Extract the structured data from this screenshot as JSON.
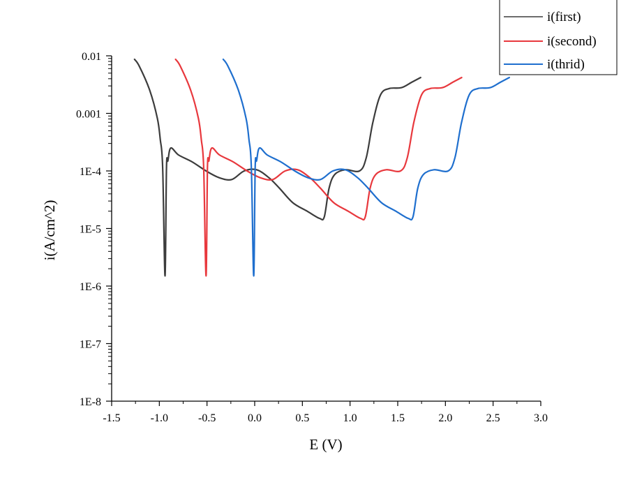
{
  "chart_data": {
    "type": "line",
    "title": "",
    "xlabel": "E (V)",
    "ylabel": "i(A/cm^2)",
    "xlim": [
      -1.5,
      3.0
    ],
    "ylim": [
      1e-08,
      0.01
    ],
    "yscale": "log",
    "grid": false,
    "legend_position": "top-right",
    "x_ticks": [
      "-1.5",
      "-1.0",
      "-0.5",
      "0.0",
      "0.5",
      "1.0",
      "1.5",
      "2.0",
      "2.5",
      "3.0"
    ],
    "x_tick_values": [
      -1.5,
      -1.0,
      -0.5,
      0.0,
      0.5,
      1.0,
      1.5,
      2.0,
      2.5,
      3.0
    ],
    "y_ticks": [
      "0.01",
      "0.001",
      "1E-4",
      "1E-5",
      "1E-6",
      "1E-7",
      "1E-8"
    ],
    "y_tick_values": [
      0.01,
      0.001,
      0.0001,
      1e-05,
      1e-06,
      1e-07,
      1e-08
    ],
    "series": [
      {
        "name": "i(first)",
        "color": "#3c3c3c",
        "x": [
          -1.26,
          -1.21,
          -1.1,
          -1.02,
          -0.99,
          -0.965,
          -0.94,
          -0.925,
          -0.91,
          -0.88,
          -0.8,
          -0.66,
          -0.51,
          -0.37,
          -0.24,
          -0.11,
          0.02,
          0.15,
          0.26,
          0.4,
          0.55,
          0.68,
          0.73,
          0.78,
          0.84,
          0.95,
          1.1,
          1.17,
          1.24,
          1.32,
          1.41,
          1.54,
          1.65,
          1.74
        ],
        "y": [
          0.0087,
          0.0066,
          0.0025,
          0.00081,
          0.00035,
          0.000115,
          1.5e-06,
          0.000115,
          0.00015,
          0.00025,
          0.00019,
          0.000145,
          0.0001,
          7.6e-05,
          7.1e-05,
          0.0001,
          0.000105,
          7.6e-05,
          5e-05,
          2.8e-05,
          2e-05,
          1.5e-05,
          1.6e-05,
          5e-05,
          8.7e-05,
          0.000105,
          0.0001,
          0.00017,
          0.00071,
          0.0021,
          0.0027,
          0.0028,
          0.0035,
          0.0042
        ]
      },
      {
        "name": "i(second)",
        "color": "#e8383d",
        "x": [
          -0.83,
          -0.78,
          -0.67,
          -0.59,
          -0.56,
          -0.535,
          -0.51,
          -0.495,
          -0.48,
          -0.45,
          -0.37,
          -0.23,
          -0.08,
          0.06,
          0.19,
          0.32,
          0.45,
          0.58,
          0.69,
          0.83,
          0.98,
          1.11,
          1.16,
          1.21,
          1.27,
          1.38,
          1.53,
          1.6,
          1.67,
          1.75,
          1.84,
          1.97,
          2.08,
          2.17
        ],
        "y": [
          0.0087,
          0.0066,
          0.0025,
          0.00081,
          0.00035,
          0.000115,
          1.5e-06,
          0.000115,
          0.00015,
          0.00025,
          0.00019,
          0.000145,
          0.0001,
          7.6e-05,
          7.1e-05,
          0.0001,
          0.000105,
          7.6e-05,
          5e-05,
          2.8e-05,
          2e-05,
          1.5e-05,
          1.6e-05,
          5e-05,
          8.7e-05,
          0.000105,
          0.0001,
          0.00017,
          0.00071,
          0.0021,
          0.0027,
          0.0028,
          0.0035,
          0.0042
        ]
      },
      {
        "name": "i(thrid)",
        "color": "#1f6fce",
        "x": [
          -0.33,
          -0.28,
          -0.17,
          -0.09,
          -0.06,
          -0.035,
          -0.01,
          0.005,
          0.02,
          0.05,
          0.13,
          0.27,
          0.42,
          0.56,
          0.69,
          0.82,
          0.95,
          1.08,
          1.19,
          1.33,
          1.48,
          1.61,
          1.66,
          1.71,
          1.77,
          1.88,
          2.03,
          2.1,
          2.17,
          2.25,
          2.34,
          2.47,
          2.58,
          2.67
        ],
        "y": [
          0.0087,
          0.0066,
          0.0025,
          0.00081,
          0.00035,
          0.000115,
          1.5e-06,
          0.000115,
          0.00015,
          0.00025,
          0.00019,
          0.000145,
          0.0001,
          7.6e-05,
          7.1e-05,
          0.0001,
          0.000105,
          7.6e-05,
          5e-05,
          2.8e-05,
          2e-05,
          1.5e-05,
          1.6e-05,
          5e-05,
          8.7e-05,
          0.000105,
          0.0001,
          0.00017,
          0.00071,
          0.0021,
          0.0027,
          0.0028,
          0.0035,
          0.0042
        ]
      }
    ]
  }
}
